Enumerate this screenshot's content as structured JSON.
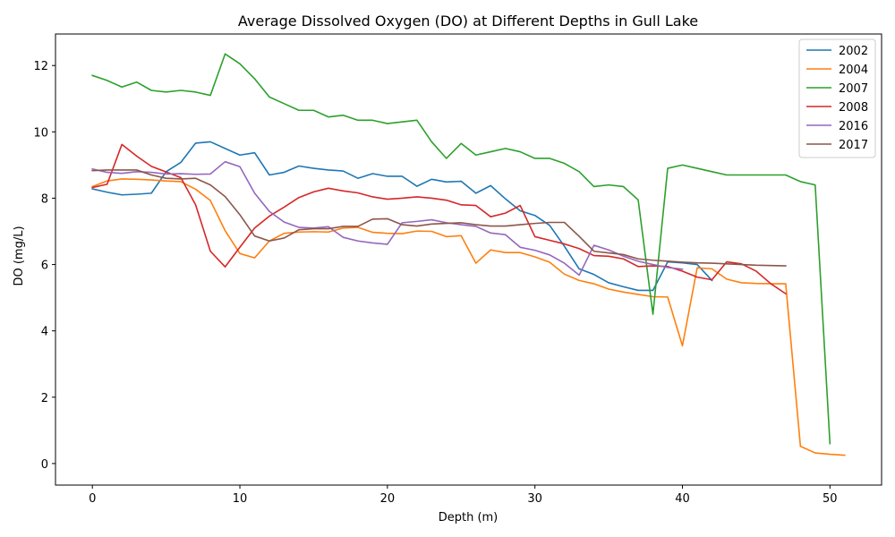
{
  "chart_data": {
    "type": "line",
    "title": "Average Dissolved Oxygen (DO) at Different Depths in Gull Lake",
    "xlabel": "Depth (m)",
    "ylabel": "DO (mg/L)",
    "xlim": [
      -2.5,
      53.5
    ],
    "ylim": [
      -0.65,
      12.95
    ],
    "xticks": [
      0,
      10,
      20,
      30,
      40,
      50
    ],
    "yticks": [
      0,
      2,
      4,
      6,
      8,
      10,
      12
    ],
    "grid": false,
    "legend_position": "top-right",
    "series": [
      {
        "name": "2002",
        "color": "#1f77b4",
        "x": [
          0,
          1,
          2,
          3,
          4,
          5,
          6,
          7,
          8,
          9,
          10,
          11,
          12,
          13,
          14,
          15,
          16,
          17,
          18,
          19,
          20,
          21,
          22,
          23,
          24,
          25,
          26,
          27,
          28,
          29,
          30,
          31,
          32,
          33,
          34,
          35,
          36,
          37,
          38,
          39,
          40,
          41,
          42
        ],
        "y": [
          8.28,
          8.18,
          8.1,
          8.12,
          8.15,
          8.8,
          9.08,
          9.66,
          9.7,
          9.5,
          9.3,
          9.37,
          8.7,
          8.78,
          8.97,
          8.9,
          8.85,
          8.82,
          8.6,
          8.74,
          8.66,
          8.66,
          8.36,
          8.57,
          8.49,
          8.51,
          8.15,
          8.38,
          7.98,
          7.62,
          7.48,
          7.18,
          6.55,
          5.87,
          5.7,
          5.45,
          5.33,
          5.22,
          5.22,
          6.08,
          6.05,
          6.0,
          5.52
        ]
      },
      {
        "name": "2004",
        "color": "#ff7f0e",
        "x": [
          0,
          1,
          2,
          3,
          4,
          5,
          6,
          7,
          8,
          9,
          10,
          11,
          12,
          13,
          14,
          15,
          16,
          17,
          18,
          19,
          20,
          21,
          22,
          23,
          24,
          25,
          26,
          27,
          28,
          29,
          30,
          31,
          32,
          33,
          34,
          35,
          36,
          37,
          38,
          39,
          40,
          41,
          42,
          43,
          44,
          45,
          46,
          47,
          48,
          49,
          50,
          51
        ],
        "y": [
          8.35,
          8.52,
          8.58,
          8.57,
          8.55,
          8.52,
          8.5,
          8.27,
          7.93,
          7.02,
          6.33,
          6.2,
          6.71,
          6.94,
          6.98,
          6.99,
          6.98,
          7.1,
          7.12,
          6.97,
          6.94,
          6.93,
          7.01,
          7.0,
          6.84,
          6.87,
          6.04,
          6.44,
          6.36,
          6.36,
          6.23,
          6.07,
          5.71,
          5.52,
          5.42,
          5.26,
          5.17,
          5.1,
          5.03,
          5.02,
          3.55,
          5.9,
          5.87,
          5.56,
          5.45,
          5.43,
          5.42,
          5.42,
          0.52,
          0.32,
          0.28,
          0.25
        ]
      },
      {
        "name": "2007",
        "color": "#2ca02c",
        "x": [
          0,
          1,
          2,
          3,
          4,
          5,
          6,
          7,
          8,
          9,
          10,
          11,
          12,
          13,
          14,
          15,
          16,
          17,
          18,
          19,
          20,
          21,
          22,
          23,
          24,
          25,
          26,
          27,
          28,
          29,
          30,
          31,
          32,
          33,
          34,
          35,
          36,
          37,
          38,
          39,
          40,
          41,
          42,
          43,
          44,
          45,
          46,
          47,
          48,
          49,
          50
        ],
        "y": [
          11.7,
          11.55,
          11.35,
          11.5,
          11.25,
          11.2,
          11.25,
          11.2,
          11.1,
          12.35,
          12.05,
          11.6,
          11.05,
          10.85,
          10.65,
          10.65,
          10.45,
          10.5,
          10.35,
          10.35,
          10.25,
          10.3,
          10.35,
          9.7,
          9.2,
          9.65,
          9.3,
          9.4,
          9.5,
          9.4,
          9.2,
          9.2,
          9.05,
          8.8,
          8.35,
          8.4,
          8.35,
          7.95,
          4.5,
          8.9,
          9.0,
          8.9,
          8.8,
          8.7,
          8.7,
          8.7,
          8.7,
          8.7,
          8.5,
          8.4,
          0.6
        ]
      },
      {
        "name": "2008",
        "color": "#d62728",
        "x": [
          0,
          1,
          2,
          3,
          4,
          5,
          6,
          7,
          8,
          9,
          10,
          11,
          12,
          13,
          14,
          15,
          16,
          17,
          18,
          19,
          20,
          21,
          22,
          23,
          24,
          25,
          26,
          27,
          28,
          29,
          30,
          31,
          32,
          33,
          34,
          35,
          36,
          37,
          38,
          39,
          40,
          41,
          42,
          43,
          44,
          45,
          46,
          47
        ],
        "y": [
          8.32,
          8.42,
          9.62,
          9.27,
          8.96,
          8.79,
          8.62,
          7.8,
          6.4,
          5.93,
          6.52,
          7.1,
          7.46,
          7.73,
          8.02,
          8.19,
          8.3,
          8.22,
          8.16,
          8.04,
          7.97,
          8.0,
          8.04,
          8.0,
          7.94,
          7.8,
          7.78,
          7.44,
          7.55,
          7.78,
          6.84,
          6.73,
          6.62,
          6.48,
          6.27,
          6.25,
          6.17,
          5.94,
          5.96,
          5.94,
          5.8,
          5.62,
          5.54,
          6.08,
          6.02,
          5.8,
          5.42,
          5.12
        ]
      },
      {
        "name": "2016",
        "color": "#9467bd",
        "x": [
          0,
          1,
          2,
          3,
          4,
          5,
          6,
          7,
          8,
          9,
          10,
          11,
          12,
          13,
          14,
          15,
          16,
          17,
          18,
          19,
          20,
          21,
          22,
          23,
          24,
          25,
          26,
          27,
          28,
          29,
          30,
          31,
          32,
          33,
          34,
          35,
          36,
          37,
          38,
          39,
          40
        ],
        "y": [
          8.88,
          8.78,
          8.75,
          8.8,
          8.78,
          8.73,
          8.74,
          8.72,
          8.73,
          9.1,
          8.95,
          8.15,
          7.6,
          7.28,
          7.12,
          7.1,
          7.14,
          6.82,
          6.71,
          6.65,
          6.61,
          7.26,
          7.3,
          7.35,
          7.26,
          7.2,
          7.15,
          6.95,
          6.9,
          6.52,
          6.43,
          6.29,
          6.04,
          5.68,
          6.58,
          6.44,
          6.25,
          6.1,
          6.0,
          5.91,
          5.86
        ]
      },
      {
        "name": "2017",
        "color": "#8c564b",
        "x": [
          0,
          1,
          2,
          3,
          4,
          5,
          6,
          7,
          8,
          9,
          10,
          11,
          12,
          13,
          14,
          15,
          16,
          17,
          18,
          19,
          20,
          21,
          22,
          23,
          24,
          25,
          26,
          27,
          28,
          29,
          30,
          31,
          32,
          33,
          34,
          35,
          36,
          37,
          38,
          39,
          40,
          41,
          42,
          43,
          44,
          45,
          46,
          47
        ],
        "y": [
          8.83,
          8.85,
          8.85,
          8.85,
          8.7,
          8.6,
          8.58,
          8.6,
          8.4,
          8.05,
          7.5,
          6.86,
          6.71,
          6.8,
          7.05,
          7.08,
          7.08,
          7.15,
          7.15,
          7.37,
          7.38,
          7.2,
          7.16,
          7.22,
          7.24,
          7.26,
          7.2,
          7.16,
          7.16,
          7.2,
          7.24,
          7.27,
          7.27,
          6.85,
          6.4,
          6.35,
          6.3,
          6.17,
          6.13,
          6.1,
          6.07,
          6.05,
          6.04,
          6.02,
          6.0,
          5.98,
          5.97,
          5.96
        ]
      }
    ]
  }
}
